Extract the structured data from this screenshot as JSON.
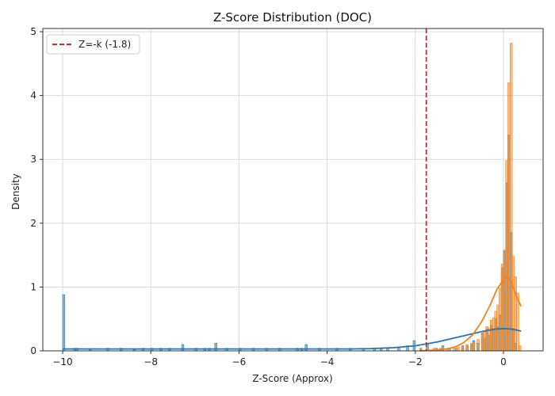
{
  "chart_data": {
    "type": "histogram",
    "title": "Z-Score Distribution (DOC)",
    "xlabel": "Z-Score (Approx)",
    "ylabel": "Density",
    "xlim": [
      -10.45,
      0.9
    ],
    "ylim": [
      0,
      5.05
    ],
    "xticks": [
      -10,
      -8,
      -6,
      -4,
      -2,
      0
    ],
    "yticks": [
      0,
      1,
      2,
      3,
      4,
      5
    ],
    "grid": true,
    "legend": {
      "position": "top-left",
      "entries": [
        "Z=-k (-1.8)"
      ]
    },
    "threshold": {
      "x": -1.75,
      "label": "Z=-k (-1.8)",
      "color": "#d62728"
    },
    "colors": {
      "series_a": "#1f77b4",
      "series_b": "#ff7f0e"
    },
    "bin_width": 0.05,
    "series": [
      {
        "bins": [
          {
            "x": -10.0,
            "y": 0.88
          },
          {
            "x": -9.75,
            "y": 0.04
          },
          {
            "x": -9.7,
            "y": 0.04
          },
          {
            "x": -9.4,
            "y": 0.02
          },
          {
            "x": -9.0,
            "y": 0.04
          },
          {
            "x": -8.7,
            "y": 0.04
          },
          {
            "x": -8.4,
            "y": 0.02
          },
          {
            "x": -8.2,
            "y": 0.04
          },
          {
            "x": -8.0,
            "y": 0.04
          },
          {
            "x": -7.8,
            "y": 0.04
          },
          {
            "x": -7.6,
            "y": 0.04
          },
          {
            "x": -7.3,
            "y": 0.1
          },
          {
            "x": -7.0,
            "y": 0.04
          },
          {
            "x": -6.8,
            "y": 0.04
          },
          {
            "x": -6.7,
            "y": 0.04
          },
          {
            "x": -6.55,
            "y": 0.12
          },
          {
            "x": -6.3,
            "y": 0.04
          },
          {
            "x": -6.0,
            "y": 0.04
          },
          {
            "x": -5.7,
            "y": 0.04
          },
          {
            "x": -5.4,
            "y": 0.04
          },
          {
            "x": -5.1,
            "y": 0.04
          },
          {
            "x": -4.7,
            "y": 0.04
          },
          {
            "x": -4.6,
            "y": 0.04
          },
          {
            "x": -4.5,
            "y": 0.1
          },
          {
            "x": -4.2,
            "y": 0.04
          },
          {
            "x": -3.8,
            "y": 0.04
          },
          {
            "x": -3.5,
            "y": 0.04
          },
          {
            "x": -3.2,
            "y": 0.04
          },
          {
            "x": -2.95,
            "y": 0.04
          },
          {
            "x": -2.8,
            "y": 0.04
          },
          {
            "x": -2.65,
            "y": 0.04
          },
          {
            "x": -2.4,
            "y": 0.04
          },
          {
            "x": -2.2,
            "y": 0.08
          },
          {
            "x": -2.05,
            "y": 0.16
          },
          {
            "x": -1.9,
            "y": 0.04
          },
          {
            "x": -1.75,
            "y": 0.12
          },
          {
            "x": -1.55,
            "y": 0.04
          },
          {
            "x": -1.4,
            "y": 0.08
          },
          {
            "x": -1.25,
            "y": 0.04
          },
          {
            "x": -1.1,
            "y": 0.04
          },
          {
            "x": -0.95,
            "y": 0.08
          },
          {
            "x": -0.85,
            "y": 0.08
          },
          {
            "x": -0.75,
            "y": 0.1
          },
          {
            "x": -0.7,
            "y": 0.16
          },
          {
            "x": -0.6,
            "y": 0.12
          },
          {
            "x": -0.5,
            "y": 0.28
          },
          {
            "x": -0.45,
            "y": 0.2
          },
          {
            "x": -0.4,
            "y": 0.34
          },
          {
            "x": -0.35,
            "y": 0.24
          },
          {
            "x": -0.3,
            "y": 0.4
          },
          {
            "x": -0.25,
            "y": 0.32
          },
          {
            "x": -0.2,
            "y": 0.5
          },
          {
            "x": -0.15,
            "y": 0.38
          },
          {
            "x": -0.1,
            "y": 0.56
          },
          {
            "x": -0.05,
            "y": 1.3
          },
          {
            "x": 0.0,
            "y": 1.56
          },
          {
            "x": 0.05,
            "y": 2.63
          },
          {
            "x": 0.1,
            "y": 3.38
          },
          {
            "x": 0.15,
            "y": 1.85
          },
          {
            "x": 0.2,
            "y": 0.35
          },
          {
            "x": 0.25,
            "y": 0.12
          }
        ],
        "kde": [
          {
            "x": -10.0,
            "y": 0.03
          },
          {
            "x": -9.0,
            "y": 0.03
          },
          {
            "x": -8.0,
            "y": 0.03
          },
          {
            "x": -7.0,
            "y": 0.03
          },
          {
            "x": -6.0,
            "y": 0.03
          },
          {
            "x": -5.0,
            "y": 0.03
          },
          {
            "x": -4.0,
            "y": 0.03
          },
          {
            "x": -3.5,
            "y": 0.03
          },
          {
            "x": -3.0,
            "y": 0.035
          },
          {
            "x": -2.5,
            "y": 0.05
          },
          {
            "x": -2.0,
            "y": 0.08
          },
          {
            "x": -1.5,
            "y": 0.14
          },
          {
            "x": -1.0,
            "y": 0.22
          },
          {
            "x": -0.5,
            "y": 0.3
          },
          {
            "x": -0.2,
            "y": 0.34
          },
          {
            "x": 0.0,
            "y": 0.35
          },
          {
            "x": 0.2,
            "y": 0.34
          },
          {
            "x": 0.4,
            "y": 0.31
          }
        ]
      },
      {
        "bins": [
          {
            "x": -1.9,
            "y": 0.04
          },
          {
            "x": -1.75,
            "y": 0.04
          },
          {
            "x": -1.6,
            "y": 0.04
          },
          {
            "x": -1.45,
            "y": 0.04
          },
          {
            "x": -1.3,
            "y": 0.04
          },
          {
            "x": -1.15,
            "y": 0.04
          },
          {
            "x": -1.05,
            "y": 0.06
          },
          {
            "x": -0.95,
            "y": 0.06
          },
          {
            "x": -0.85,
            "y": 0.1
          },
          {
            "x": -0.75,
            "y": 0.12
          },
          {
            "x": -0.7,
            "y": 0.14
          },
          {
            "x": -0.6,
            "y": 0.18
          },
          {
            "x": -0.5,
            "y": 0.28
          },
          {
            "x": -0.45,
            "y": 0.3
          },
          {
            "x": -0.4,
            "y": 0.38
          },
          {
            "x": -0.35,
            "y": 0.36
          },
          {
            "x": -0.3,
            "y": 0.48
          },
          {
            "x": -0.25,
            "y": 0.52
          },
          {
            "x": -0.2,
            "y": 0.62
          },
          {
            "x": -0.15,
            "y": 0.72
          },
          {
            "x": -0.1,
            "y": 0.98
          },
          {
            "x": -0.05,
            "y": 1.36
          },
          {
            "x": 0.0,
            "y": 1.58
          },
          {
            "x": 0.05,
            "y": 2.98
          },
          {
            "x": 0.1,
            "y": 4.2
          },
          {
            "x": 0.15,
            "y": 4.82
          },
          {
            "x": 0.2,
            "y": 1.48
          },
          {
            "x": 0.25,
            "y": 1.16
          },
          {
            "x": 0.3,
            "y": 0.9
          },
          {
            "x": 0.35,
            "y": 0.08
          }
        ],
        "kde": [
          {
            "x": -1.9,
            "y": 0.0
          },
          {
            "x": -1.6,
            "y": 0.01
          },
          {
            "x": -1.3,
            "y": 0.03
          },
          {
            "x": -1.1,
            "y": 0.06
          },
          {
            "x": -0.9,
            "y": 0.13
          },
          {
            "x": -0.7,
            "y": 0.25
          },
          {
            "x": -0.5,
            "y": 0.45
          },
          {
            "x": -0.3,
            "y": 0.72
          },
          {
            "x": -0.15,
            "y": 0.96
          },
          {
            "x": 0.0,
            "y": 1.12
          },
          {
            "x": 0.08,
            "y": 1.16
          },
          {
            "x": 0.15,
            "y": 1.12
          },
          {
            "x": 0.22,
            "y": 1.0
          },
          {
            "x": 0.3,
            "y": 0.85
          },
          {
            "x": 0.4,
            "y": 0.7
          }
        ]
      }
    ]
  }
}
